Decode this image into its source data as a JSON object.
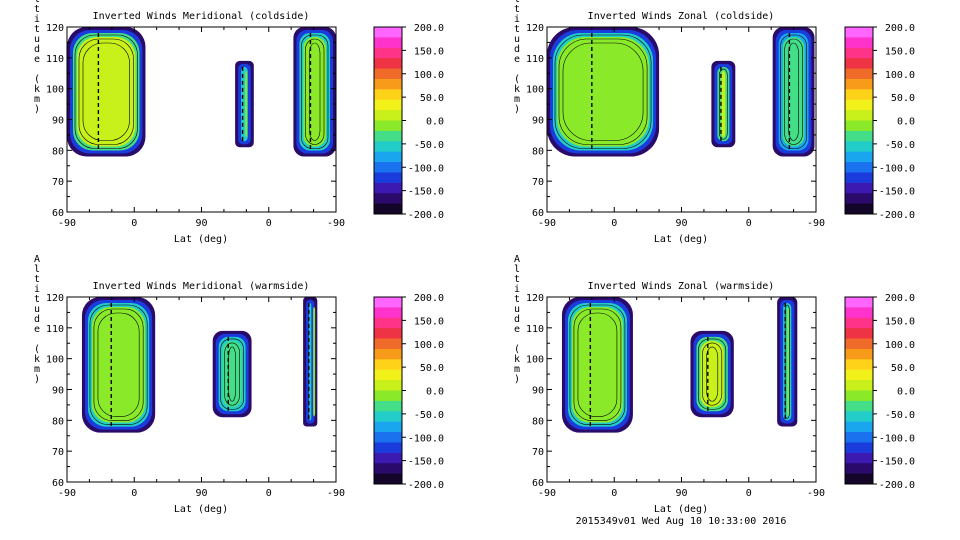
{
  "footer": "2015349v01 Wed Aug 10 10:33:00 2016",
  "colorbar": {
    "tick_labels": [
      "200.0",
      "150.0",
      "100.0",
      "50.0",
      "0.0",
      "-50.0",
      "-100.0",
      "-150.0",
      "-200.0"
    ],
    "colors": [
      "#ff66ff",
      "#ff33cc",
      "#ff3388",
      "#ee3344",
      "#f06a2a",
      "#f89a1a",
      "#ffd21a",
      "#f2f21a",
      "#c8f01a",
      "#8aea2a",
      "#44dd88",
      "#22ccc8",
      "#1aa6ee",
      "#1a72ee",
      "#1a3cdd",
      "#3c1ab2",
      "#2a0a6a",
      "#140628"
    ],
    "range": [
      -200,
      200
    ]
  },
  "chart_data": [
    {
      "type": "heatmap",
      "title": "Inverted Winds Meridional (coldside)",
      "xlabel": "Lat (deg)",
      "ylabel": "Altitude (km)",
      "x_tick_labels": [
        "-90",
        "0",
        "90",
        "0",
        "-90"
      ],
      "y_tick_labels": [
        "60",
        "70",
        "80",
        "90",
        "100",
        "110",
        "120"
      ],
      "ylim": [
        60,
        120
      ],
      "blobs": [
        {
          "x": [
            -90,
            15
          ],
          "y": [
            78,
            120
          ],
          "v": 5
        },
        {
          "x": [
            135,
            160
          ],
          "y": [
            81,
            109
          ],
          "v": -10
        },
        {
          "x": [
            213,
            270
          ],
          "y": [
            78,
            120
          ],
          "v": -15
        }
      ]
    },
    {
      "type": "heatmap",
      "title": "Inverted Winds Zonal (coldside)",
      "xlabel": "Lat (deg)",
      "ylabel": "Altitude (km)",
      "x_tick_labels": [
        "-90",
        "0",
        "90",
        "0",
        "-90"
      ],
      "y_tick_labels": [
        "60",
        "70",
        "80",
        "90",
        "100",
        "110",
        "120"
      ],
      "ylim": [
        60,
        120
      ],
      "blobs": [
        {
          "x": [
            -90,
            60
          ],
          "y": [
            78,
            120
          ],
          "v": -20
        },
        {
          "x": [
            130,
            162
          ],
          "y": [
            81,
            109
          ],
          "v": 10
        },
        {
          "x": [
            212,
            268
          ],
          "y": [
            78,
            120
          ],
          "v": -40
        }
      ]
    },
    {
      "type": "heatmap",
      "title": "Inverted Winds Meridional (warmside)",
      "xlabel": "Lat (deg)",
      "ylabel": "Altitude (km)",
      "x_tick_labels": [
        "-90",
        "0",
        "90",
        "0",
        "-90"
      ],
      "y_tick_labels": [
        "60",
        "70",
        "80",
        "90",
        "100",
        "110",
        "120"
      ],
      "ylim": [
        60,
        120
      ],
      "blobs": [
        {
          "x": [
            -70,
            28
          ],
          "y": [
            76,
            120
          ],
          "v": -5
        },
        {
          "x": [
            105,
            157
          ],
          "y": [
            81,
            109
          ],
          "v": -25
        },
        {
          "x": [
            226,
            245
          ],
          "y": [
            78,
            120
          ],
          "v": -20
        }
      ]
    },
    {
      "type": "heatmap",
      "title": "Inverted Winds Zonal (warmside)",
      "xlabel": "Lat (deg)",
      "ylabel": "Altitude (km)",
      "x_tick_labels": [
        "-90",
        "0",
        "90",
        "0",
        "-90"
      ],
      "y_tick_labels": [
        "60",
        "70",
        "80",
        "90",
        "100",
        "110",
        "120"
      ],
      "ylim": [
        60,
        120
      ],
      "blobs": [
        {
          "x": [
            -70,
            25
          ],
          "y": [
            76,
            120
          ],
          "v": -10
        },
        {
          "x": [
            102,
            160
          ],
          "y": [
            81,
            109
          ],
          "v": 5
        },
        {
          "x": [
            218,
            245
          ],
          "y": [
            78,
            120
          ],
          "v": -20
        }
      ]
    }
  ]
}
